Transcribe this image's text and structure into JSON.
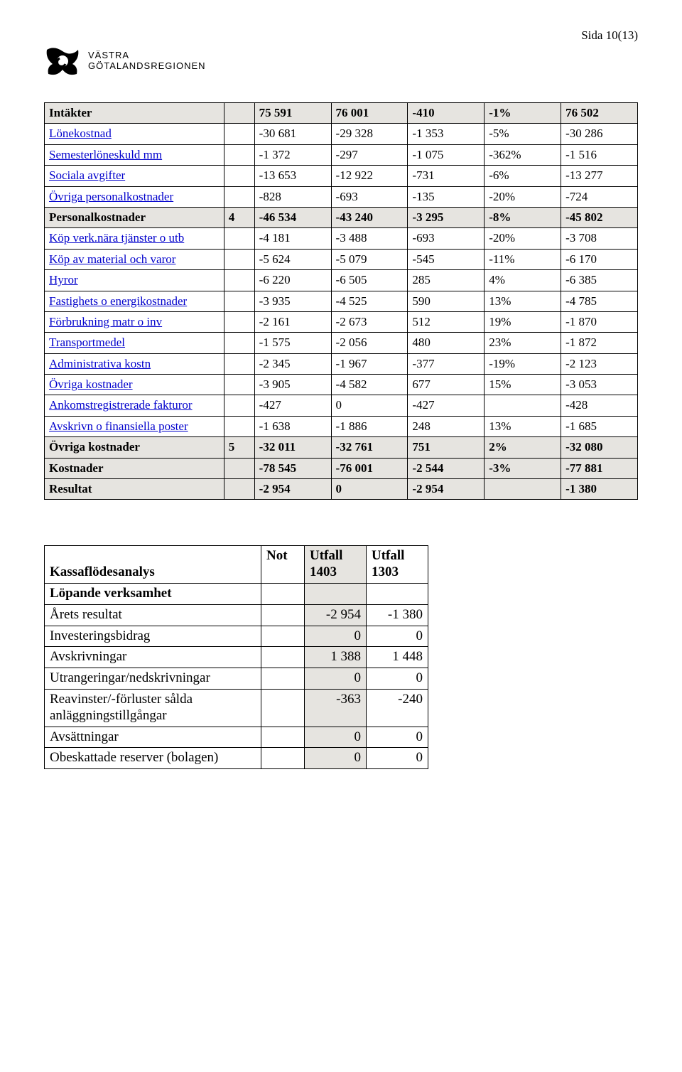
{
  "pageNumber": "Sida 10(13)",
  "logo": {
    "line1": "VÄSTRA",
    "line2": "GÖTALANDSREGIONEN"
  },
  "colors": {
    "headerBg": "#e6e4e0",
    "link": "#0000cc",
    "border": "#000000"
  },
  "finTable": {
    "rows": [
      {
        "label": "Intäkter",
        "link": false,
        "header": true,
        "note": "",
        "c": [
          "75 591",
          "76 001",
          "-410",
          "-1%",
          "76 502"
        ]
      },
      {
        "label": "Lönekostnad",
        "link": true,
        "header": false,
        "note": "",
        "c": [
          "-30 681",
          "-29 328",
          "-1 353",
          "-5%",
          "-30 286"
        ]
      },
      {
        "label": "Semesterlöneskuld mm",
        "link": true,
        "header": false,
        "note": "",
        "c": [
          "-1 372",
          "-297",
          "-1 075",
          "-362%",
          "-1 516"
        ]
      },
      {
        "label": "Sociala avgifter",
        "link": true,
        "header": false,
        "note": "",
        "c": [
          "-13 653",
          "-12 922",
          "-731",
          "-6%",
          "-13 277"
        ]
      },
      {
        "label": "Övriga personalkostnader",
        "link": true,
        "header": false,
        "note": "",
        "c": [
          "-828",
          "-693",
          "-135",
          "-20%",
          "-724"
        ]
      },
      {
        "label": "Personalkostnader",
        "link": false,
        "header": true,
        "note": "4",
        "c": [
          "-46 534",
          "-43 240",
          "-3 295",
          "-8%",
          "-45 802"
        ]
      },
      {
        "label": "Köp verk.nära tjänster o utb",
        "link": true,
        "header": false,
        "note": "",
        "c": [
          "-4 181",
          "-3 488",
          "-693",
          "-20%",
          "-3 708"
        ]
      },
      {
        "label": "Köp av material och varor",
        "link": true,
        "header": false,
        "note": "",
        "c": [
          "-5 624",
          "-5 079",
          "-545",
          "-11%",
          "-6 170"
        ]
      },
      {
        "label": "Hyror",
        "link": true,
        "header": false,
        "note": "",
        "c": [
          "-6 220",
          "-6 505",
          "285",
          "4%",
          "-6 385"
        ]
      },
      {
        "label": "Fastighets o energikostnader",
        "link": true,
        "header": false,
        "note": "",
        "c": [
          "-3 935",
          "-4 525",
          "590",
          "13%",
          "-4 785"
        ]
      },
      {
        "label": "Förbrukning matr o inv",
        "link": true,
        "header": false,
        "note": "",
        "c": [
          "-2 161",
          "-2 673",
          "512",
          "19%",
          "-1 870"
        ]
      },
      {
        "label": "Transportmedel",
        "link": true,
        "header": false,
        "note": "",
        "c": [
          "-1 575",
          "-2 056",
          "480",
          "23%",
          "-1 872"
        ]
      },
      {
        "label": "Administrativa kostn",
        "link": true,
        "header": false,
        "note": "",
        "c": [
          "-2 345",
          "-1 967",
          "-377",
          "-19%",
          "-2 123"
        ]
      },
      {
        "label": "Övriga kostnader",
        "link": true,
        "header": false,
        "note": "",
        "c": [
          "-3 905",
          "-4 582",
          "677",
          "15%",
          "-3 053"
        ]
      },
      {
        "label": "Ankomstregistrerade fakturor",
        "link": true,
        "header": false,
        "note": "",
        "c": [
          "-427",
          "0",
          "-427",
          "",
          "-428"
        ]
      },
      {
        "label": "Avskrivn o finansiella poster",
        "link": true,
        "header": false,
        "note": "",
        "c": [
          "-1 638",
          "-1 886",
          "248",
          "13%",
          "-1 685"
        ]
      },
      {
        "label": "Övriga kostnader",
        "link": false,
        "header": true,
        "note": "5",
        "c": [
          "-32 011",
          "-32 761",
          "751",
          "2%",
          "-32 080"
        ]
      },
      {
        "label": "Kostnader",
        "link": false,
        "header": true,
        "note": "",
        "c": [
          "-78 545",
          "-76 001",
          "-2 544",
          "-3%",
          "-77 881"
        ]
      },
      {
        "label": "Resultat",
        "link": false,
        "header": true,
        "note": "",
        "c": [
          "-2 954",
          "0",
          "-2 954",
          "",
          "-1 380"
        ]
      }
    ]
  },
  "cf": {
    "title": "Kassaflödesanalys",
    "head": {
      "c2": "Not",
      "c3": "Utfall 1403",
      "c4": "Utfall 1303"
    },
    "section": "Löpande verksamhet",
    "rows": [
      {
        "label": "Årets resultat",
        "v1": "-2 954",
        "v2": "-1 380"
      },
      {
        "label": "Investeringsbidrag",
        "v1": "0",
        "v2": "0"
      },
      {
        "label": "Avskrivningar",
        "v1": "1 388",
        "v2": "1 448"
      },
      {
        "label": "Utrangeringar/nedskrivningar",
        "v1": "0",
        "v2": "0"
      },
      {
        "label": "Reavinster/-förluster sålda anläggningstillgångar",
        "v1": "-363",
        "v2": "-240"
      },
      {
        "label": "Avsättningar",
        "v1": "0",
        "v2": "0"
      },
      {
        "label": "Obeskattade reserver (bolagen)",
        "v1": "0",
        "v2": "0"
      }
    ]
  }
}
